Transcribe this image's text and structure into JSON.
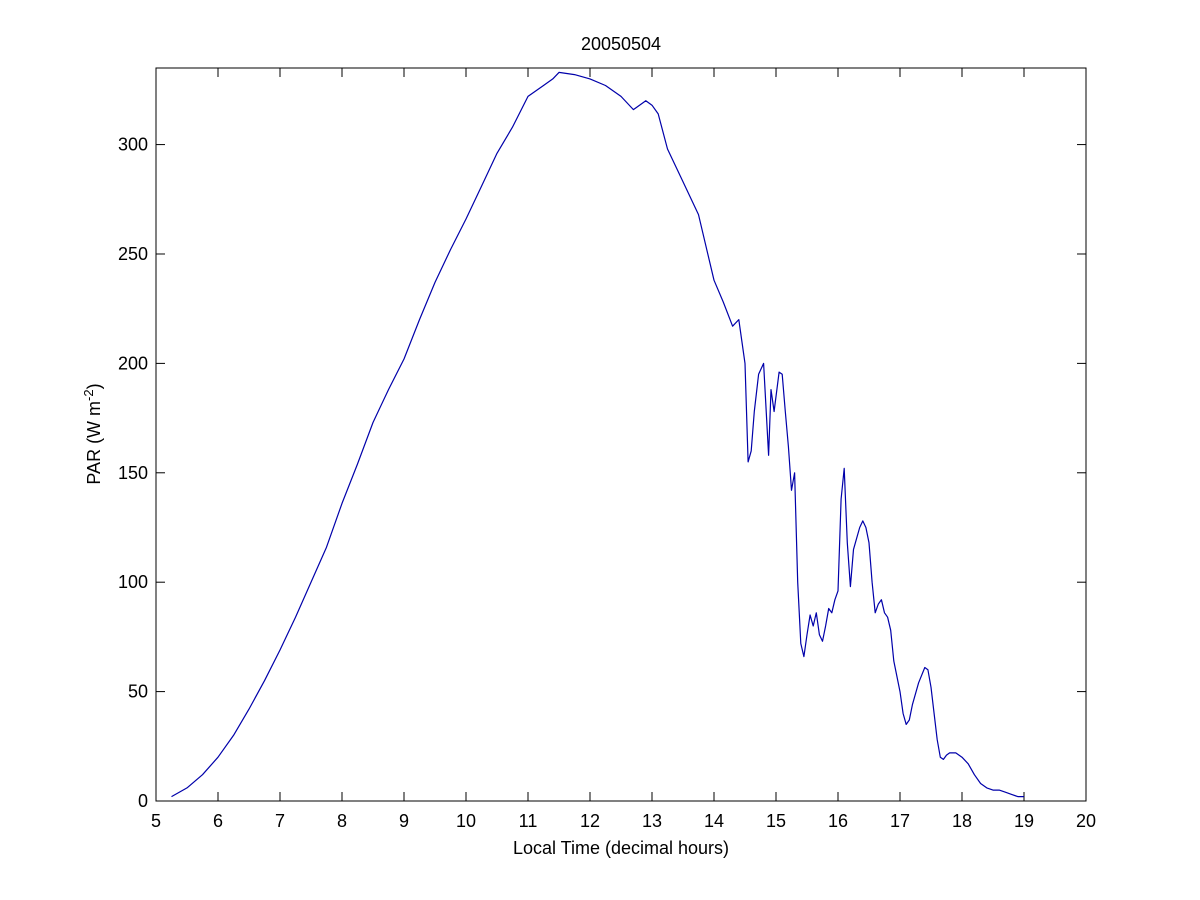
{
  "chart_data": {
    "type": "line",
    "title": "20050504",
    "xlabel": "Local Time (decimal hours)",
    "ylabel_main": "PAR (W m",
    "ylabel_sup": "-2",
    "ylabel_close": ")",
    "xlim": [
      5,
      20
    ],
    "ylim": [
      0,
      335
    ],
    "xticks": [
      5,
      6,
      7,
      8,
      9,
      10,
      11,
      12,
      13,
      14,
      15,
      16,
      17,
      18,
      19,
      20
    ],
    "yticks": [
      0,
      50,
      100,
      150,
      200,
      250,
      300
    ],
    "grid": false,
    "line_color": "#0000aa",
    "series": [
      {
        "x": [
          5.25,
          5.5,
          5.75,
          6.0,
          6.25,
          6.5,
          6.75,
          7.0,
          7.25,
          7.5,
          7.75,
          8.0,
          8.25,
          8.5,
          8.75,
          9.0,
          9.25,
          9.5,
          9.75,
          10.0,
          10.25,
          10.5,
          10.75,
          11.0,
          11.25,
          11.4,
          11.5,
          11.75,
          12.0,
          12.25,
          12.5,
          12.7,
          12.9,
          13.0,
          13.1,
          13.25,
          13.5,
          13.75,
          13.9,
          14.0,
          14.15,
          14.3,
          14.4,
          14.45,
          14.5,
          14.55,
          14.6,
          14.65,
          14.72,
          14.8,
          14.88,
          14.92,
          14.97,
          15.05,
          15.1,
          15.15,
          15.2,
          15.25,
          15.3,
          15.35,
          15.4,
          15.45,
          15.5,
          15.55,
          15.6,
          15.65,
          15.7,
          15.75,
          15.8,
          15.85,
          15.9,
          15.95,
          16.0,
          16.05,
          16.1,
          16.15,
          16.2,
          16.25,
          16.3,
          16.35,
          16.4,
          16.45,
          16.5,
          16.55,
          16.6,
          16.65,
          16.7,
          16.75,
          16.8,
          16.85,
          16.9,
          17.0,
          17.05,
          17.1,
          17.15,
          17.2,
          17.3,
          17.4,
          17.45,
          17.5,
          17.55,
          17.6,
          17.65,
          17.7,
          17.75,
          17.8,
          17.85,
          17.9,
          18.0,
          18.1,
          18.2,
          18.3,
          18.4,
          18.5,
          18.6,
          18.7,
          18.8,
          18.9,
          19.0
        ],
        "y": [
          2,
          6,
          12,
          20,
          30,
          42,
          55,
          69,
          84,
          100,
          116,
          136,
          154,
          173,
          188,
          202,
          220,
          237,
          252,
          266,
          281,
          296,
          308,
          322,
          327,
          330,
          333,
          332,
          330,
          327,
          322,
          316,
          320,
          318,
          314,
          298,
          283,
          268,
          250,
          238,
          228,
          217,
          220,
          210,
          200,
          155,
          160,
          178,
          195,
          200,
          158,
          188,
          178,
          196,
          195,
          178,
          162,
          142,
          150,
          100,
          72,
          66,
          76,
          85,
          80,
          86,
          76,
          73,
          80,
          88,
          86,
          92,
          96,
          138,
          152,
          118,
          98,
          115,
          120,
          125,
          128,
          125,
          118,
          100,
          86,
          90,
          92,
          86,
          84,
          78,
          64,
          50,
          40,
          35,
          37,
          44,
          54,
          61,
          60,
          52,
          40,
          28,
          20,
          19,
          21,
          22,
          22,
          22,
          20,
          17,
          12,
          8,
          6,
          5,
          5,
          4,
          3,
          2,
          2
        ]
      }
    ]
  }
}
